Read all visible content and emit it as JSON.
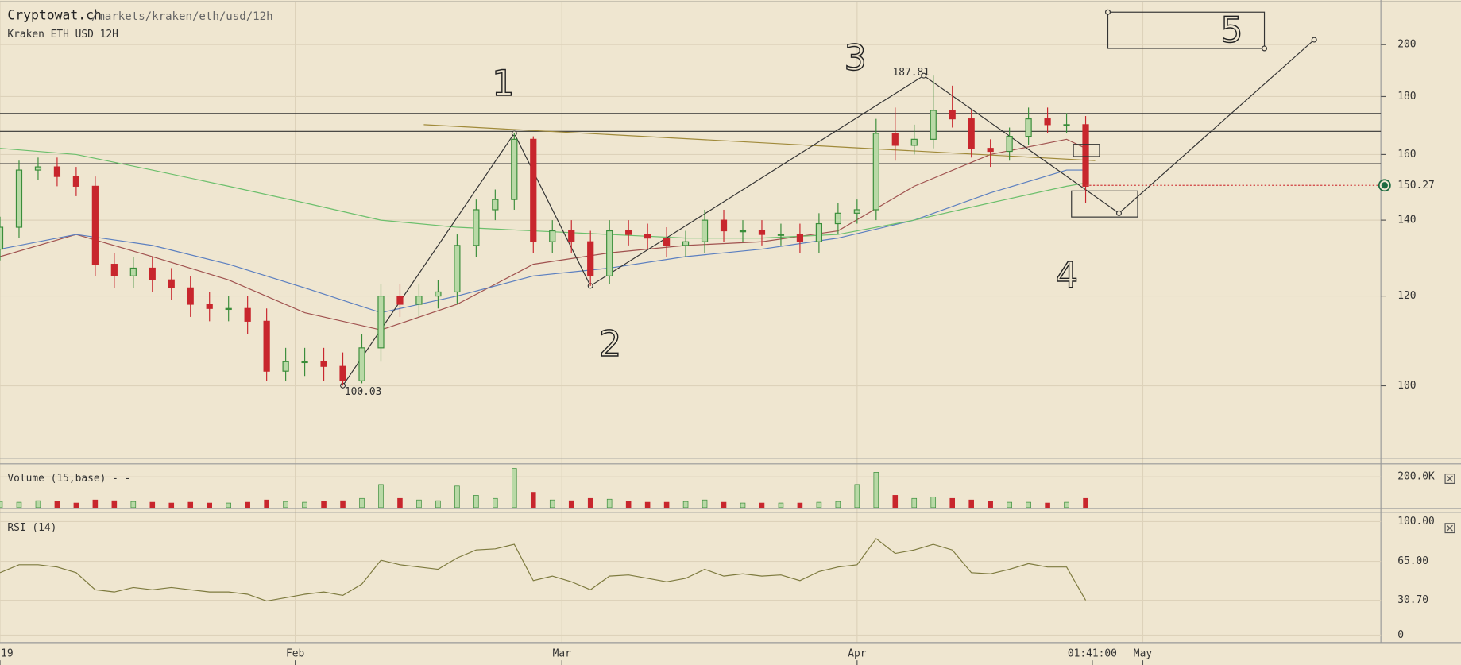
{
  "header": {
    "site": "Cryptowat.ch",
    "path": "/markets/kraken/eth/usd/12h",
    "market": "Kraken ETH USD 12H"
  },
  "notes": [
    "1",
    "2",
    "3",
    "4",
    "5"
  ],
  "chart_data": [
    {
      "type": "candlestick",
      "x": [
        0,
        2,
        4,
        6,
        8,
        10,
        12,
        14,
        16,
        18,
        20,
        22,
        24,
        26,
        28,
        30,
        32,
        34,
        36,
        38,
        40,
        42,
        44,
        46,
        48,
        50,
        52,
        54,
        56,
        58,
        60,
        62,
        64,
        66,
        68,
        70,
        72,
        74,
        76,
        78,
        80,
        82,
        84,
        86,
        88,
        90,
        92,
        94,
        96,
        98,
        100,
        102,
        104,
        106,
        108,
        110,
        112,
        114
      ],
      "open": [
        132,
        138,
        155,
        156,
        153,
        150,
        128,
        125,
        127,
        124,
        122,
        118,
        117,
        117,
        114,
        103,
        105,
        105,
        104,
        101,
        108,
        120,
        118,
        120,
        121,
        133,
        143,
        146,
        165,
        134,
        137,
        134,
        125,
        137,
        136,
        135,
        133,
        134,
        140,
        137,
        137,
        136,
        136,
        134,
        139,
        142,
        143,
        167,
        163,
        165,
        175,
        172,
        162,
        161,
        166,
        172,
        170,
        170
      ],
      "high": [
        141,
        158,
        159,
        159,
        156,
        153,
        131,
        130,
        130,
        127,
        125,
        121,
        120,
        120,
        117,
        108,
        108,
        108,
        107,
        111,
        123,
        123,
        123,
        124,
        136,
        146,
        149,
        167,
        166,
        140,
        140,
        137,
        140,
        140,
        139,
        138,
        137,
        143,
        143,
        140,
        140,
        139,
        139,
        142,
        145,
        146,
        172,
        176,
        170,
        187.81,
        184,
        175,
        165,
        169,
        176,
        176,
        174,
        173
      ],
      "low": [
        129,
        135,
        152,
        150,
        147,
        125,
        122,
        122,
        121,
        119,
        115,
        114,
        114,
        111,
        101,
        101,
        102,
        101,
        100.03,
        100.5,
        105,
        115,
        115,
        117,
        118,
        130,
        140,
        143,
        131,
        131,
        131,
        122.5,
        123,
        133,
        132,
        130,
        130,
        131,
        134,
        134,
        133,
        133,
        131,
        131,
        136,
        139,
        140,
        158,
        160,
        162,
        169,
        159,
        156,
        158,
        163,
        167,
        167,
        145
      ],
      "close": [
        138,
        155,
        156,
        153,
        150,
        128,
        125,
        127,
        124,
        122,
        118,
        117,
        117,
        114,
        103,
        105,
        105,
        104,
        101,
        108,
        120,
        118,
        120,
        121,
        133,
        143,
        146,
        165,
        134,
        137,
        134,
        125,
        137,
        136,
        135,
        133,
        134,
        140,
        137,
        137,
        136,
        136,
        134,
        139,
        142,
        143,
        167,
        163,
        165,
        175,
        172,
        162,
        161,
        166,
        172,
        170,
        170,
        150
      ],
      "up_color": "#3a8d3a",
      "down_color": "#c8262d",
      "xlim": [
        0,
        145
      ],
      "xticks": [
        {
          "value": 0,
          "label": "19"
        },
        {
          "value": 31,
          "label": "Feb"
        },
        {
          "value": 59,
          "label": "Mar"
        },
        {
          "value": 90,
          "label": "Apr"
        },
        {
          "value": 120,
          "label": "May"
        }
      ],
      "ylim": [
        86.3,
        219
      ],
      "yticks": [
        100,
        120,
        140,
        160,
        180,
        200
      ],
      "log_scale": true,
      "grid": true,
      "overlays": [
        {
          "color": "#a0524f",
          "x": [
            0,
            8,
            16,
            24,
            32,
            40,
            48,
            56,
            64,
            72,
            80,
            88,
            96,
            104,
            112,
            114
          ],
          "values": [
            130,
            136,
            130,
            124,
            116,
            112,
            118,
            128,
            131,
            133,
            134,
            137,
            150,
            160,
            165,
            162
          ]
        },
        {
          "color": "#5b7fc0",
          "x": [
            0,
            8,
            16,
            24,
            32,
            40,
            48,
            56,
            64,
            72,
            80,
            88,
            96,
            104,
            112,
            114
          ],
          "values": [
            132,
            136,
            133,
            128,
            122,
            116,
            120,
            125,
            127,
            130,
            132,
            135,
            140,
            148,
            155,
            155
          ]
        },
        {
          "color": "#6cbf6c",
          "x": [
            0,
            8,
            16,
            24,
            32,
            40,
            48,
            56,
            64,
            72,
            80,
            88,
            96,
            104,
            112,
            114
          ],
          "values": [
            162,
            160,
            155,
            150,
            145,
            140,
            138,
            137,
            136,
            135,
            135,
            136,
            140,
            145,
            150,
            151
          ]
        },
        {
          "color": "#a08a3a",
          "x": [
            44.5,
            115
          ],
          "values": [
            170,
            158
          ]
        }
      ],
      "hlines": [
        173.9,
        167.7,
        157
      ],
      "trendline": {
        "x": [
          36,
          54,
          62,
          97,
          117.5,
          138
        ],
        "values": [
          100.03,
          167,
          122.5,
          187.81,
          142,
          202
        ]
      },
      "last_price": 150.27,
      "current_time": {
        "value": 114.7,
        "label": "01:41:00"
      }
    },
    {
      "type": "bar",
      "title": "Volume (15,base) - -",
      "x": [
        0,
        2,
        4,
        6,
        8,
        10,
        12,
        14,
        16,
        18,
        20,
        22,
        24,
        26,
        28,
        30,
        32,
        34,
        36,
        38,
        40,
        42,
        44,
        46,
        48,
        50,
        52,
        54,
        56,
        58,
        60,
        62,
        64,
        66,
        68,
        70,
        72,
        74,
        76,
        78,
        80,
        82,
        84,
        86,
        88,
        90,
        92,
        94,
        96,
        98,
        100,
        102,
        104,
        106,
        108,
        110,
        112,
        114
      ],
      "values": [
        40000,
        35000,
        45000,
        40000,
        30000,
        50000,
        45000,
        40000,
        35000,
        30000,
        35000,
        30000,
        30000,
        35000,
        50000,
        40000,
        35000,
        40000,
        45000,
        60000,
        150000,
        60000,
        50000,
        45000,
        140000,
        80000,
        60000,
        255000,
        100000,
        50000,
        45000,
        60000,
        55000,
        40000,
        35000,
        35000,
        40000,
        50000,
        35000,
        30000,
        30000,
        30000,
        30000,
        35000,
        40000,
        150000,
        230000,
        80000,
        60000,
        70000,
        60000,
        50000,
        40000,
        35000,
        35000,
        30000,
        35000,
        60000
      ],
      "ylim": [
        0,
        272700
      ],
      "yticks": [
        {
          "value": 200000,
          "label": "200.0K"
        }
      ]
    },
    {
      "type": "line",
      "title": "RSI (14)",
      "color": "#7d7a3e",
      "x": [
        0,
        2,
        4,
        6,
        8,
        10,
        12,
        14,
        16,
        18,
        20,
        22,
        24,
        26,
        28,
        30,
        32,
        34,
        36,
        38,
        40,
        42,
        44,
        46,
        48,
        50,
        52,
        54,
        56,
        58,
        60,
        62,
        64,
        66,
        68,
        70,
        72,
        74,
        76,
        78,
        80,
        82,
        84,
        86,
        88,
        90,
        92,
        94,
        96,
        98,
        100,
        102,
        104,
        106,
        108,
        110,
        112,
        114
      ],
      "values": [
        55,
        62,
        62,
        60,
        55,
        40,
        38,
        42,
        40,
        42,
        40,
        38,
        38,
        36,
        30,
        33,
        36,
        38,
        35,
        45,
        66,
        62,
        60,
        58,
        68,
        75,
        76,
        80,
        48,
        52,
        47,
        40,
        52,
        53,
        50,
        47,
        50,
        58,
        52,
        54,
        52,
        53,
        48,
        56,
        60,
        62,
        85,
        72,
        75,
        80,
        75,
        55,
        54,
        58,
        63,
        60,
        60,
        30.7
      ],
      "ylim": [
        0,
        100
      ],
      "yticks": [
        {
          "value": 100,
          "label": "100.00"
        },
        {
          "value": 65,
          "label": "65.00"
        },
        {
          "value": 30.7,
          "label": "30.70"
        },
        0
      ]
    }
  ]
}
